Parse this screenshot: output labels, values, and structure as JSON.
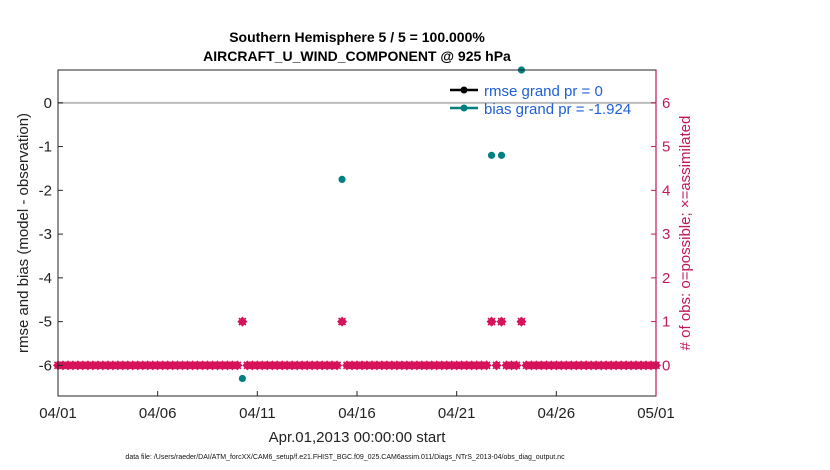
{
  "chart_data": {
    "type": "scatter",
    "title": "Southern Hemisphere 5 / 5 = 100.000%",
    "subtitle": "AIRCRAFT_U_WIND_COMPONENT @ 925 hPa",
    "xlabel": "Apr.01,2013 00:00:00 start",
    "ylabel": "rmse and bias (model - observation)",
    "ylabel_right": "# of obs: o=possible; ×=assimilated",
    "xlim": [
      0,
      30
    ],
    "ylim": [
      -6.7,
      0.75
    ],
    "ylim_right": [
      -0.7,
      6.75
    ],
    "x_ticks": [
      0,
      5,
      10,
      15,
      20,
      25,
      30
    ],
    "x_tick_labels": [
      "04/01",
      "04/06",
      "04/11",
      "04/16",
      "04/21",
      "04/26",
      "05/01"
    ],
    "y_ticks": [
      0,
      -1,
      -2,
      -3,
      -4,
      -5,
      -6
    ],
    "y_tick_labels": [
      "0",
      "-1",
      "-2",
      "-3",
      "-4",
      "-5",
      "-6"
    ],
    "y_right_ticks": [
      0,
      1,
      2,
      3,
      4,
      5,
      6
    ],
    "y_right_tick_labels": [
      "0",
      "1",
      "2",
      "3",
      "4",
      "5",
      "6"
    ],
    "grid": false,
    "legend_position": "top-right",
    "colors": {
      "rmse": "#000000",
      "bias": "#008080",
      "obs": "#d6135b",
      "zero_line": "#bbbbbb",
      "right_axis": "#c2185b",
      "legend_text": "#1f5fd6"
    },
    "series": [
      {
        "name": "rmse grand pr = 0",
        "axis": "left",
        "x": [],
        "y": []
      },
      {
        "name": "bias grand pr = -1.924",
        "axis": "left",
        "x": [
          9.25,
          14.25,
          21.75,
          22.25,
          23.25
        ],
        "y": [
          -6.3,
          -1.75,
          -1.2,
          -1.2,
          0.75
        ]
      },
      {
        "name": "obs possible",
        "axis": "right",
        "x": [
          0,
          0.25,
          0.5,
          0.75,
          1,
          1.25,
          1.5,
          1.75,
          2,
          2.25,
          2.5,
          2.75,
          3,
          3.25,
          3.5,
          3.75,
          4,
          4.25,
          4.5,
          4.75,
          5,
          5.25,
          5.5,
          5.75,
          6,
          6.25,
          6.5,
          6.75,
          7,
          7.25,
          7.5,
          7.75,
          8,
          8.25,
          8.5,
          8.75,
          9,
          9.25,
          9.5,
          9.75,
          10,
          10.25,
          10.5,
          10.75,
          11,
          11.25,
          11.5,
          11.75,
          12,
          12.25,
          12.5,
          12.75,
          13,
          13.25,
          13.5,
          13.75,
          14,
          14.25,
          14.5,
          14.75,
          15,
          15.25,
          15.5,
          15.75,
          16,
          16.25,
          16.5,
          16.75,
          17,
          17.25,
          17.5,
          17.75,
          18,
          18.25,
          18.5,
          18.75,
          19,
          19.25,
          19.5,
          19.75,
          20,
          20.25,
          20.5,
          20.75,
          21,
          21.25,
          21.5,
          21.75,
          22,
          22.25,
          22.5,
          22.75,
          23,
          23.25,
          23.5,
          23.75,
          24,
          24.25,
          24.5,
          24.75,
          25,
          25.25,
          25.5,
          25.75,
          26,
          26.25,
          26.5,
          26.75,
          27,
          27.25,
          27.5,
          27.75,
          28,
          28.25,
          28.5,
          28.75,
          29,
          29.25,
          29.5,
          29.75,
          30
        ],
        "y": [
          0,
          0,
          0,
          0,
          0,
          0,
          0,
          0,
          0,
          0,
          0,
          0,
          0,
          0,
          0,
          0,
          0,
          0,
          0,
          0,
          0,
          0,
          0,
          0,
          0,
          0,
          0,
          0,
          0,
          0,
          0,
          0,
          0,
          0,
          0,
          0,
          0,
          1,
          0,
          0,
          0,
          0,
          0,
          0,
          0,
          0,
          0,
          0,
          0,
          0,
          0,
          0,
          0,
          0,
          0,
          0,
          0,
          1,
          0,
          0,
          0,
          0,
          0,
          0,
          0,
          0,
          0,
          0,
          0,
          0,
          0,
          0,
          0,
          0,
          0,
          0,
          0,
          0,
          0,
          0,
          0,
          0,
          0,
          0,
          0,
          0,
          0,
          1,
          0,
          1,
          0,
          0,
          0,
          1,
          0,
          0,
          0,
          0,
          0,
          0,
          0,
          0,
          0,
          0,
          0,
          0,
          0,
          0,
          0,
          0,
          0,
          0,
          0,
          0,
          0,
          0,
          0,
          0,
          0,
          0,
          0
        ]
      },
      {
        "name": "obs assimilated",
        "axis": "right",
        "x": [
          0,
          0.25,
          0.5,
          0.75,
          1,
          1.25,
          1.5,
          1.75,
          2,
          2.25,
          2.5,
          2.75,
          3,
          3.25,
          3.5,
          3.75,
          4,
          4.25,
          4.5,
          4.75,
          5,
          5.25,
          5.5,
          5.75,
          6,
          6.25,
          6.5,
          6.75,
          7,
          7.25,
          7.5,
          7.75,
          8,
          8.25,
          8.5,
          8.75,
          9,
          9.25,
          9.5,
          9.75,
          10,
          10.25,
          10.5,
          10.75,
          11,
          11.25,
          11.5,
          11.75,
          12,
          12.25,
          12.5,
          12.75,
          13,
          13.25,
          13.5,
          13.75,
          14,
          14.25,
          14.5,
          14.75,
          15,
          15.25,
          15.5,
          15.75,
          16,
          16.25,
          16.5,
          16.75,
          17,
          17.25,
          17.5,
          17.75,
          18,
          18.25,
          18.5,
          18.75,
          19,
          19.25,
          19.5,
          19.75,
          20,
          20.25,
          20.5,
          20.75,
          21,
          21.25,
          21.5,
          21.75,
          22,
          22.25,
          22.5,
          22.75,
          23,
          23.25,
          23.5,
          23.75,
          24,
          24.25,
          24.5,
          24.75,
          25,
          25.25,
          25.5,
          25.75,
          26,
          26.25,
          26.5,
          26.75,
          27,
          27.25,
          27.5,
          27.75,
          28,
          28.25,
          28.5,
          28.75,
          29,
          29.25,
          29.5,
          29.75,
          30
        ],
        "y": [
          0,
          0,
          0,
          0,
          0,
          0,
          0,
          0,
          0,
          0,
          0,
          0,
          0,
          0,
          0,
          0,
          0,
          0,
          0,
          0,
          0,
          0,
          0,
          0,
          0,
          0,
          0,
          0,
          0,
          0,
          0,
          0,
          0,
          0,
          0,
          0,
          0,
          1,
          0,
          0,
          0,
          0,
          0,
          0,
          0,
          0,
          0,
          0,
          0,
          0,
          0,
          0,
          0,
          0,
          0,
          0,
          0,
          1,
          0,
          0,
          0,
          0,
          0,
          0,
          0,
          0,
          0,
          0,
          0,
          0,
          0,
          0,
          0,
          0,
          0,
          0,
          0,
          0,
          0,
          0,
          0,
          0,
          0,
          0,
          0,
          0,
          0,
          1,
          0,
          1,
          0,
          0,
          0,
          1,
          0,
          0,
          0,
          0,
          0,
          0,
          0,
          0,
          0,
          0,
          0,
          0,
          0,
          0,
          0,
          0,
          0,
          0,
          0,
          0,
          0,
          0,
          0,
          0,
          0,
          0,
          0
        ]
      }
    ],
    "footnote": "data file: /Users/raeder/DAI/ATM_forcXX/CAM6_setup/f.e21.FHIST_BGC.f09_025.CAM6assim.011/Diags_NTrS_2013-04/obs_diag_output.nc"
  }
}
